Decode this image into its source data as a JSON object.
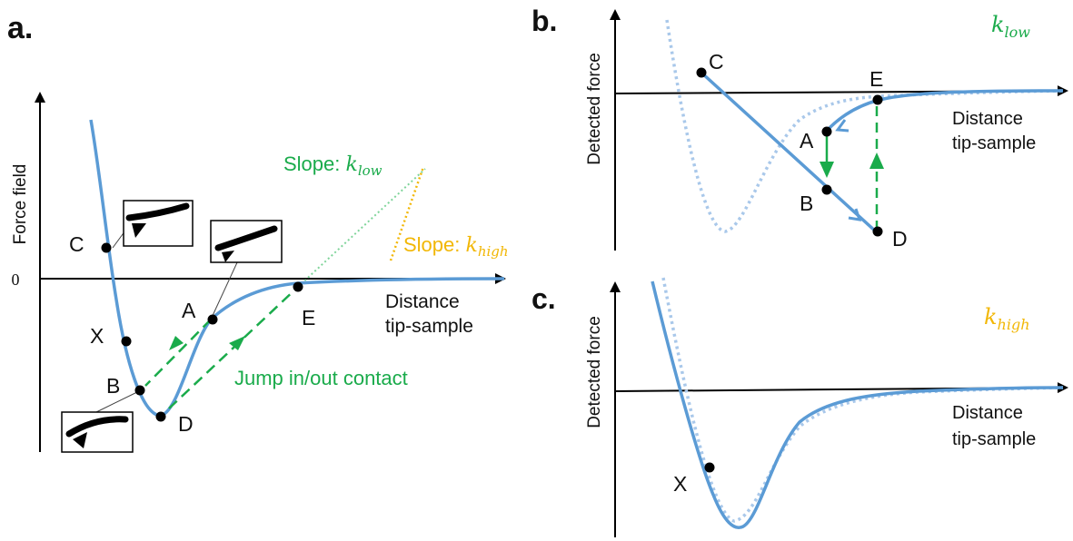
{
  "colors": {
    "curve": "#5b9bd5",
    "dotted_curve": "#a9c8ea",
    "green": "#1aab4b",
    "orange": "#f2b705",
    "axis": "#000000"
  },
  "panel_a": {
    "letter": "a.",
    "y_axis_label": "Force field",
    "zero_label": "0",
    "x_axis_label_line1": "Distance",
    "x_axis_label_line2": "tip-sample",
    "points": {
      "c": "C",
      "x": "X",
      "b": "B",
      "d": "D",
      "a": "A",
      "e": "E"
    },
    "slope_low_prefix": "Slope: ",
    "slope_low_k": "k",
    "slope_low_sub": "low",
    "slope_high_prefix": "Slope: ",
    "slope_high_k": "k",
    "slope_high_sub": "high",
    "jump_label": "Jump in/out contact"
  },
  "panel_b": {
    "letter": "b.",
    "y_axis_label": "Detected force",
    "x_axis_label_line1": "Distance",
    "x_axis_label_line2": "tip-sample",
    "k": "k",
    "k_sub": "low",
    "points": {
      "c": "C",
      "e": "E",
      "a": "A",
      "b": "B",
      "d": "D"
    }
  },
  "panel_c": {
    "letter": "c.",
    "y_axis_label": "Detected force",
    "x_axis_label_line1": "Distance",
    "x_axis_label_line2": "tip-sample",
    "k": "k",
    "k_sub": "high",
    "points": {
      "x": "X"
    }
  }
}
